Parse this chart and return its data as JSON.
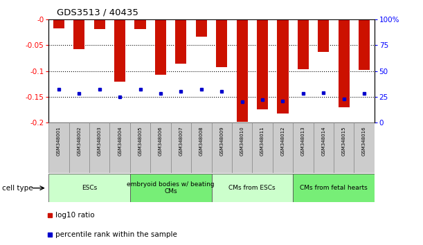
{
  "title": "GDS3513 / 40435",
  "samples": [
    "GSM348001",
    "GSM348002",
    "GSM348003",
    "GSM348004",
    "GSM348005",
    "GSM348006",
    "GSM348007",
    "GSM348008",
    "GSM348009",
    "GSM348010",
    "GSM348011",
    "GSM348012",
    "GSM348013",
    "GSM348014",
    "GSM348015",
    "GSM348016"
  ],
  "log10_ratio": [
    -0.017,
    -0.057,
    -0.018,
    -0.12,
    -0.018,
    -0.107,
    -0.085,
    -0.033,
    -0.093,
    -0.198,
    -0.175,
    -0.182,
    -0.096,
    -0.063,
    -0.17,
    -0.098
  ],
  "percentile_rank": [
    32,
    28,
    32,
    25,
    32,
    28,
    30,
    32,
    30,
    20,
    22,
    21,
    28,
    29,
    23,
    28
  ],
  "cell_type_groups": [
    {
      "label": "ESCs",
      "start": 0,
      "end": 3,
      "color": "#ccffcc"
    },
    {
      "label": "embryoid bodies w/ beating\nCMs",
      "start": 4,
      "end": 7,
      "color": "#77ee77"
    },
    {
      "label": "CMs from ESCs",
      "start": 8,
      "end": 11,
      "color": "#ccffcc"
    },
    {
      "label": "CMs from fetal hearts",
      "start": 12,
      "end": 15,
      "color": "#77ee77"
    }
  ],
  "bar_color": "#cc1100",
  "dot_color": "#0000cc",
  "left_ylim": [
    -0.2,
    0.0
  ],
  "right_ylim": [
    0,
    100
  ],
  "left_yticks": [
    0.0,
    -0.05,
    -0.1,
    -0.15,
    -0.2
  ],
  "right_yticks": [
    0,
    25,
    50,
    75,
    100
  ],
  "left_yticklabels": [
    "-0",
    "-0.05",
    "-0.1",
    "-0.15",
    "-0.2"
  ],
  "right_yticklabels": [
    "0",
    "25",
    "50",
    "75",
    "100%"
  ],
  "cell_type_label": "cell type",
  "legend_ratio_label": "log10 ratio",
  "legend_pct_label": "percentile rank within the sample"
}
